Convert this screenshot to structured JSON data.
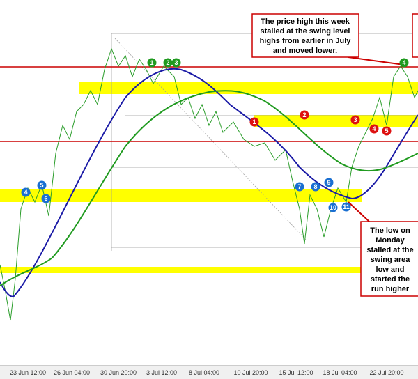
{
  "annotations": {
    "top": [
      "The price high this week",
      "stalled at the swing level",
      "highs from earlier in July",
      "and moved lower."
    ],
    "bottom": [
      "The low on",
      "Monday",
      "stalled at the",
      "swing area",
      "low and",
      "started the",
      "run higher"
    ]
  },
  "x_labels": [
    "23 Jun 12:00",
    "26 Jun 04:00",
    "30 Jun 20:00",
    "3 Jul 12:00",
    "8 Jul 04:00",
    "10 Jul 20:00",
    "15 Jul 12:00",
    "18 Jul 04:00",
    "22 Jul 20:00"
  ],
  "markers": {
    "green": [
      "1",
      "2",
      "3",
      "4"
    ],
    "red": [
      "1",
      "2",
      "3",
      "4",
      "5"
    ],
    "blue": [
      "4",
      "5",
      "6",
      "7",
      "8",
      "9",
      "10",
      "11"
    ]
  }
}
